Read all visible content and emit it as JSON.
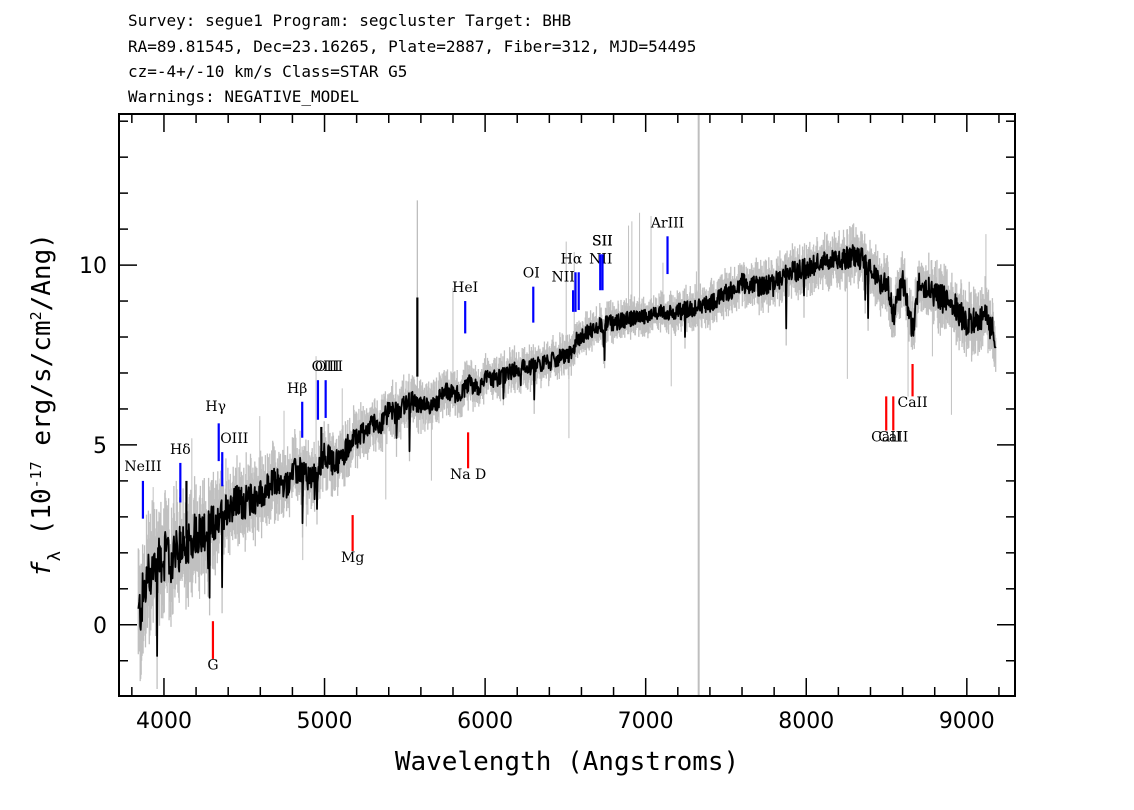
{
  "header": {
    "line1": "Survey: segue1 Program: segcluster Target: BHB",
    "line2": "RA=89.81545, Dec=23.16265, Plate=2887, Fiber=312, MJD=54495",
    "line3": "cz=-4+/-10 km/s Class=STAR G5",
    "line4": "Warnings: NEGATIVE_MODEL"
  },
  "chart_data": {
    "type": "line",
    "xlabel": "Wavelength (Angstroms)",
    "ylabel": "f_λ (10^-17 erg/s/cm^2/Ang)",
    "xlim": [
      3720,
      9300
    ],
    "ylim": [
      -1.98,
      14.2
    ],
    "xticks": [
      4000,
      5000,
      6000,
      7000,
      8000,
      9000
    ],
    "yticks": [
      0,
      5,
      10
    ],
    "flux_anchors": {
      "x": [
        3840,
        3900,
        3950,
        4000,
        4050,
        4100,
        4150,
        4200,
        4250,
        4300,
        4350,
        4400,
        4450,
        4500,
        4550,
        4600,
        4650,
        4700,
        4750,
        4800,
        4850,
        4900,
        4950,
        5000,
        5050,
        5100,
        5150,
        5200,
        5250,
        5300,
        5350,
        5400,
        5450,
        5500,
        5550,
        5600,
        5650,
        5700,
        5750,
        5800,
        5850,
        5900,
        5950,
        6000,
        6100,
        6200,
        6300,
        6400,
        6500,
        6550,
        6560,
        6600,
        6700,
        6800,
        6900,
        7000,
        7100,
        7200,
        7300,
        7400,
        7500,
        7600,
        7700,
        7800,
        7900,
        8000,
        8100,
        8200,
        8300,
        8400,
        8450,
        8500,
        8542,
        8600,
        8662,
        8700,
        8800,
        8900,
        9000,
        9100,
        9150,
        9180
      ],
      "y": [
        0.2,
        1.3,
        1.8,
        1.9,
        1.8,
        2.1,
        2.3,
        2.6,
        2.6,
        2.8,
        3.0,
        3.3,
        3.4,
        3.4,
        3.5,
        3.6,
        3.8,
        4.0,
        3.8,
        4.2,
        4.3,
        4.1,
        4.2,
        4.8,
        4.5,
        4.6,
        5.0,
        5.2,
        5.4,
        5.6,
        5.6,
        5.9,
        5.9,
        6.1,
        6.2,
        6.1,
        6.0,
        6.2,
        6.5,
        6.4,
        6.4,
        6.7,
        6.6,
        6.8,
        6.9,
        7.1,
        7.2,
        7.3,
        7.5,
        7.5,
        7.9,
        8.0,
        8.3,
        8.4,
        8.5,
        8.6,
        8.7,
        8.7,
        8.8,
        8.9,
        9.2,
        9.5,
        9.4,
        9.5,
        9.8,
        9.9,
        10.1,
        10.1,
        10.3,
        10.0,
        9.5,
        9.6,
        8.6,
        9.6,
        8.1,
        9.6,
        9.2,
        9.0,
        8.4,
        8.6,
        8.3,
        7.9
      ]
    },
    "noise_amplitude": {
      "x": [
        3840,
        4400,
        5000,
        6000,
        7000,
        8000,
        9180
      ],
      "y": [
        0.8,
        0.5,
        0.35,
        0.25,
        0.22,
        0.3,
        0.4
      ]
    },
    "spikes": [
      {
        "x": 5578,
        "y": 9.1,
        "base": 6.9
      },
      {
        "x": 4140,
        "y": 4.0,
        "base": 2.4
      },
      {
        "x": 4980,
        "y": 5.5,
        "base": 4.4
      }
    ],
    "sky_vline": 7330,
    "emission_lines": [
      {
        "label": "NeIII",
        "x": 3869,
        "y1": 4.0,
        "y2": 2.95,
        "label_y": 4.27,
        "label_dx": 0
      },
      {
        "label": "Hδ",
        "x": 4102,
        "y1": 4.5,
        "y2": 3.4,
        "label_y": 4.75,
        "label_dx": 0
      },
      {
        "label": "Hγ",
        "x": 4341,
        "y1": 5.6,
        "y2": 4.55,
        "label_y": 5.95,
        "label_dx": -3
      },
      {
        "label": "OIII",
        "x": 4363,
        "y1": 4.8,
        "y2": 3.85,
        "label_y": 5.05,
        "label_dx": 12
      },
      {
        "label": "Hβ",
        "x": 4861,
        "y1": 6.2,
        "y2": 5.2,
        "label_y": 6.45,
        "label_dx": -5
      },
      {
        "label": "OIII",
        "x": 4959,
        "y1": 6.8,
        "y2": 5.7,
        "label_y": 7.05,
        "label_dx": 11
      },
      {
        "label": "OIII",
        "x": 5007,
        "y1": 6.8,
        "y2": 5.75,
        "label_y": 7.05,
        "label_dx": 0
      },
      {
        "label": "HeI",
        "x": 5876,
        "y1": 9.0,
        "y2": 8.1,
        "label_y": 9.25,
        "label_dx": 0
      },
      {
        "label": "OI",
        "x": 6300,
        "y1": 9.4,
        "y2": 8.4,
        "label_y": 9.65,
        "label_dx": -2
      },
      {
        "label": "NII",
        "x": 6548,
        "y1": 9.3,
        "y2": 8.7,
        "label_y": 9.55,
        "label_dx": -10
      },
      {
        "label": "Hα",
        "x": 6563,
        "y1": 9.8,
        "y2": 8.7,
        "label_y": 10.05,
        "label_dx": -4
      },
      {
        "label": "NII",
        "x": 6583,
        "y1": 9.8,
        "y2": 8.75,
        "label_y": 10.05,
        "label_dx": 22
      },
      {
        "label": "SII",
        "x": 6717,
        "y1": 10.3,
        "y2": 9.3,
        "label_y": 10.55,
        "label_dx": 2
      },
      {
        "label": "SII",
        "x": 6731,
        "y1": 10.3,
        "y2": 9.3,
        "label_y": 10.55,
        "label_dx": 0
      },
      {
        "label": "ArIII",
        "x": 7136,
        "y1": 10.8,
        "y2": 9.75,
        "label_y": 11.05,
        "label_dx": 0
      }
    ],
    "absorption_lines": [
      {
        "label": "G",
        "x": 4305,
        "y1": 0.1,
        "y2": -0.95,
        "label_y": -1.25,
        "label_dx": 0
      },
      {
        "label": "Mg",
        "x": 5175,
        "y1": 3.05,
        "y2": 2.05,
        "label_y": 1.75,
        "label_dx": 0
      },
      {
        "label": "Na D",
        "x": 5894,
        "y1": 5.35,
        "y2": 4.35,
        "label_y": 4.05,
        "label_dx": 0
      },
      {
        "label": "CaII",
        "x": 8498,
        "y1": 6.35,
        "y2": 5.4,
        "label_y": 5.1,
        "label_dx": 0
      },
      {
        "label": "CaII",
        "x": 8542,
        "y1": 6.35,
        "y2": 5.4,
        "label_y": 5.1,
        "label_dx": 0
      },
      {
        "label": "CaII",
        "x": 8662,
        "y1": 7.25,
        "y2": 6.35,
        "label_y": 6.05,
        "label_dx": 0
      }
    ],
    "colors": {
      "flux": "#000000",
      "noise": "#c0c0c0",
      "sky_line": "#bebebe",
      "emission": "#0000ff",
      "absorption": "#ff0000"
    }
  }
}
